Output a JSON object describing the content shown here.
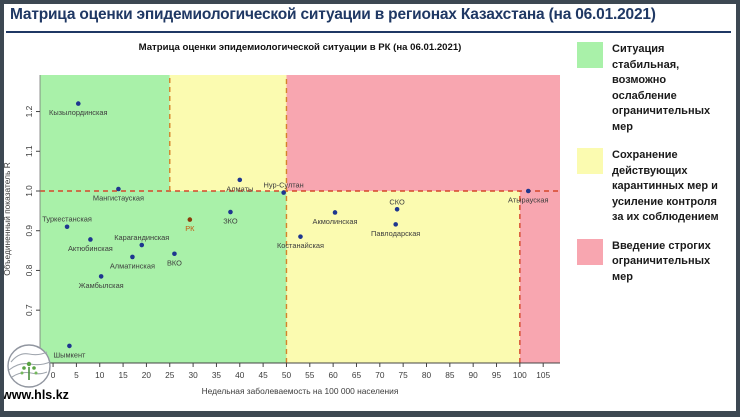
{
  "slide": {
    "title": "Матрица оценки эпидемиологической ситуации в регионах Казахстана (на 06.01.2021)",
    "footer_url": "www.hls.kz",
    "border_color": "#3d4852",
    "title_color": "#1f3864"
  },
  "legend": {
    "items": [
      {
        "color": "#a9f1a9",
        "text": "Ситуация стабильная, возможно ослабление ограничительных мер"
      },
      {
        "color": "#fbfbb0",
        "text": "Сохранение действующих карантинных мер и усиление контроля за их соблюдением"
      },
      {
        "color": "#f8a6b0",
        "text": "Введение строгих ограничительных мер"
      }
    ]
  },
  "chart_data": {
    "type": "scatter",
    "title": "Матрица оценки эпидемиологической ситуации в РК (на 06.01.2021)",
    "xlabel": "Недельная заболеваемость на 100 000 населения",
    "ylabel": "Объединенный показатель R",
    "xlim": [
      -2.8,
      108.6
    ],
    "ylim": [
      0.567,
      1.292
    ],
    "xticks": [
      0,
      5,
      10,
      15,
      20,
      25,
      30,
      35,
      40,
      45,
      50,
      55,
      60,
      65,
      70,
      75,
      80,
      85,
      90,
      95,
      100,
      105
    ],
    "yticks": [
      "0.7",
      "0.8",
      "0.9",
      "1.0",
      "1.1",
      "1.2"
    ],
    "grid": false,
    "legend_position": "right",
    "point_color": "#1e368f",
    "label_color": "#3d3d3d",
    "zones": [
      {
        "name": "zone-stable-green",
        "color": "#a9f1a9",
        "rects": [
          [
            -2.8,
            1.0,
            25,
            1.292
          ],
          [
            -2.8,
            0.567,
            50,
            1.0
          ]
        ]
      },
      {
        "name": "zone-keep-yellow",
        "color": "#fbfbb0",
        "rects": [
          [
            25,
            1.0,
            50,
            1.292
          ],
          [
            50,
            0.567,
            100,
            1.0
          ]
        ]
      },
      {
        "name": "zone-strict-red",
        "color": "#f8a6b0",
        "rects": [
          [
            50,
            1.0,
            108.6,
            1.292
          ],
          [
            100,
            0.567,
            108.6,
            1.0
          ]
        ]
      }
    ],
    "threshold_lines": [
      {
        "name": "r-threshold-1.0",
        "x1": -2.8,
        "y1": 1.0,
        "x2": 108.6,
        "y2": 1.0,
        "color": "#d5472a"
      },
      {
        "name": "x-threshold-25",
        "x1": 25,
        "y1": 1.0,
        "x2": 25,
        "y2": 1.292,
        "color": "#d5832a"
      },
      {
        "name": "x-threshold-50",
        "x1": 50,
        "y1": 0.567,
        "x2": 50,
        "y2": 1.292,
        "color": "#d5832a"
      },
      {
        "name": "x-threshold-100",
        "x1": 100,
        "y1": 0.567,
        "x2": 100,
        "y2": 1.0,
        "color": "#d5472a"
      }
    ],
    "points": [
      {
        "name": "Кызылординская",
        "x": 5.4,
        "y": 1.22,
        "label_pos": "below"
      },
      {
        "name": "Мангистауская",
        "x": 14,
        "y": 1.005,
        "label_pos": "below"
      },
      {
        "name": "Туркестанская",
        "x": 3,
        "y": 0.91,
        "label_pos": "above"
      },
      {
        "name": "Актюбинская",
        "x": 8,
        "y": 0.878,
        "label_pos": "below"
      },
      {
        "name": "Карагандинская",
        "x": 19,
        "y": 0.864,
        "label_pos": "above"
      },
      {
        "name": "Алматинская",
        "x": 17,
        "y": 0.834,
        "label_pos": "below"
      },
      {
        "name": "ВКО",
        "x": 26,
        "y": 0.842,
        "label_pos": "below"
      },
      {
        "name": "Жамбылская",
        "x": 10.3,
        "y": 0.785,
        "label_pos": "below"
      },
      {
        "name": "Шымкент",
        "x": 3.5,
        "y": 0.61,
        "label_pos": "below"
      },
      {
        "name": "РК",
        "x": 29.3,
        "y": 0.928,
        "label_pos": "below",
        "point_color": "#8c3b0a",
        "label_color": "#c4570f"
      },
      {
        "name": "ЗКО",
        "x": 38,
        "y": 0.947,
        "label_pos": "below"
      },
      {
        "name": "Алматы",
        "x": 40,
        "y": 1.028,
        "label_pos": "below"
      },
      {
        "name": "Нур-Султан",
        "x": 49.4,
        "y": 0.996,
        "label_pos": "above"
      },
      {
        "name": "Костанайская",
        "x": 53,
        "y": 0.885,
        "label_pos": "below"
      },
      {
        "name": "Акмолинская",
        "x": 60.4,
        "y": 0.946,
        "label_pos": "below"
      },
      {
        "name": "СКО",
        "x": 73.7,
        "y": 0.954,
        "label_pos": "above"
      },
      {
        "name": "Павлодарская",
        "x": 73.4,
        "y": 0.916,
        "label_pos": "below"
      },
      {
        "name": "Атырауская",
        "x": 101.8,
        "y": 1.0,
        "label_pos": "below"
      }
    ]
  }
}
